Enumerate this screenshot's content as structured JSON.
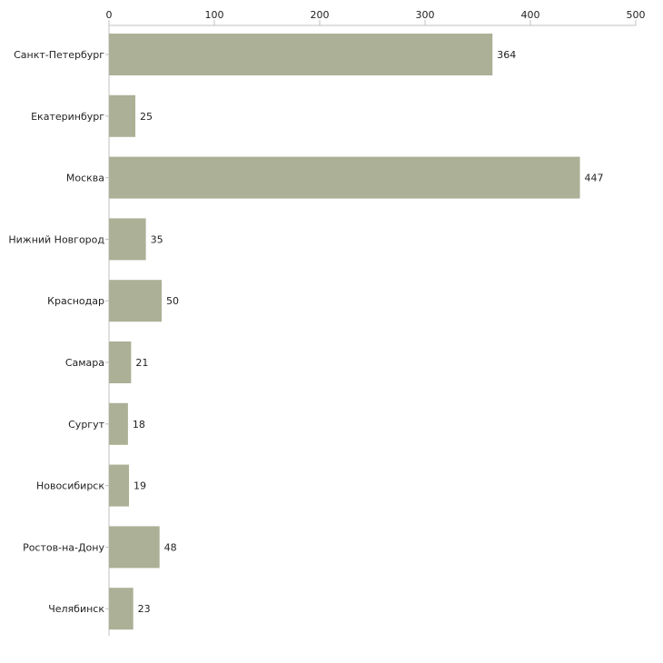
{
  "chart_data": {
    "type": "bar",
    "orientation": "horizontal",
    "title": "",
    "xlabel": "",
    "ylabel": "",
    "xlim": [
      0,
      500
    ],
    "x_ticks": [
      0,
      100,
      200,
      300,
      400,
      500
    ],
    "x_tick_labels": [
      "0",
      "100",
      "200",
      "300",
      "400",
      "500"
    ],
    "axis_position": "top",
    "grid": false,
    "categories": [
      "Санкт-Петербург",
      "Екатеринбург",
      "Москва",
      "Нижний Новгород",
      "Краснодар",
      "Самара",
      "Сургут",
      "Новосибирск",
      "Ростов-на-Дону",
      "Челябинск"
    ],
    "values": [
      364,
      25,
      447,
      35,
      50,
      21,
      18,
      19,
      48,
      23
    ],
    "value_labels": [
      "364",
      "25",
      "447",
      "35",
      "50",
      "21",
      "18",
      "19",
      "48",
      "23"
    ],
    "colors": {
      "bar": "#abb096",
      "axis": "#c0c0c0",
      "text": "#222222"
    }
  }
}
